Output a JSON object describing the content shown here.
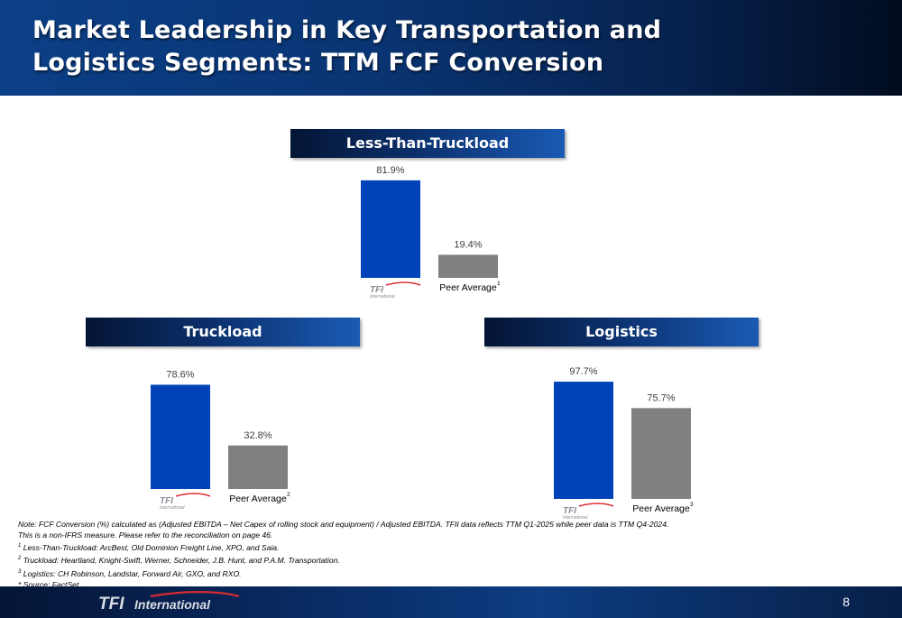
{
  "header": {
    "title_line1": "Market Leadership in Key Transportation and",
    "title_line2": "Logistics Segments: TTM FCF Conversion"
  },
  "colors": {
    "tfi_bar": "#0042b8",
    "peer_bar": "#808080",
    "logo_red": "#d72a31",
    "logo_gray": "#8a8f96"
  },
  "logo": {
    "text": "TFI",
    "sub": "International"
  },
  "chart_data": [
    {
      "type": "bar",
      "title": "Less-Than-Truckload",
      "categories": [
        "TFI International",
        "Peer Average"
      ],
      "values": [
        81.9,
        19.4
      ],
      "value_labels": [
        "81.9%",
        "19.4%"
      ],
      "peer_label": "Peer Average",
      "peer_footnote": "1",
      "unit": "%"
    },
    {
      "type": "bar",
      "title": "Truckload",
      "categories": [
        "TFI International",
        "Peer Average"
      ],
      "values": [
        78.6,
        32.8
      ],
      "value_labels": [
        "78.6%",
        "32.8%"
      ],
      "peer_label": "Peer Average",
      "peer_footnote": "2",
      "unit": "%"
    },
    {
      "type": "bar",
      "title": "Logistics",
      "categories": [
        "TFI International",
        "Peer Average"
      ],
      "values": [
        97.7,
        75.7
      ],
      "value_labels": [
        "97.7%",
        "75.7%"
      ],
      "peer_label": "Peer Average",
      "peer_footnote": "3",
      "unit": "%"
    }
  ],
  "notes": {
    "line1": "Note: FCF Conversion (%) calculated as (Adjusted EBITDA – Net Capex of rolling stock and equipment) / Adjusted EBITDA. TFII data reflects TTM Q1-2025 while peer data is TTM Q4-2024.",
    "line2": "This is a non-IFRS measure. Please refer to the reconciliation on page 46.",
    "fn1_mark": "1",
    "fn1": " Less-Than-Truckload: ArcBest, Old Dominion Freight Line, XPO, and Saia.",
    "fn2_mark": "2",
    "fn2": " Truckload: Heartland, Knight-Swift, Werner, Schneider, J.B. Hunt, and P.A.M. Transportation.",
    "fn3_mark": "3",
    "fn3": " Logistics: CH Robinson, Landstar, Forward Air, GXO, and RXO.",
    "source": "* Source: FactSet"
  },
  "footer": {
    "logo_text": "TFI",
    "logo_sub": "International",
    "page_number": "8"
  }
}
